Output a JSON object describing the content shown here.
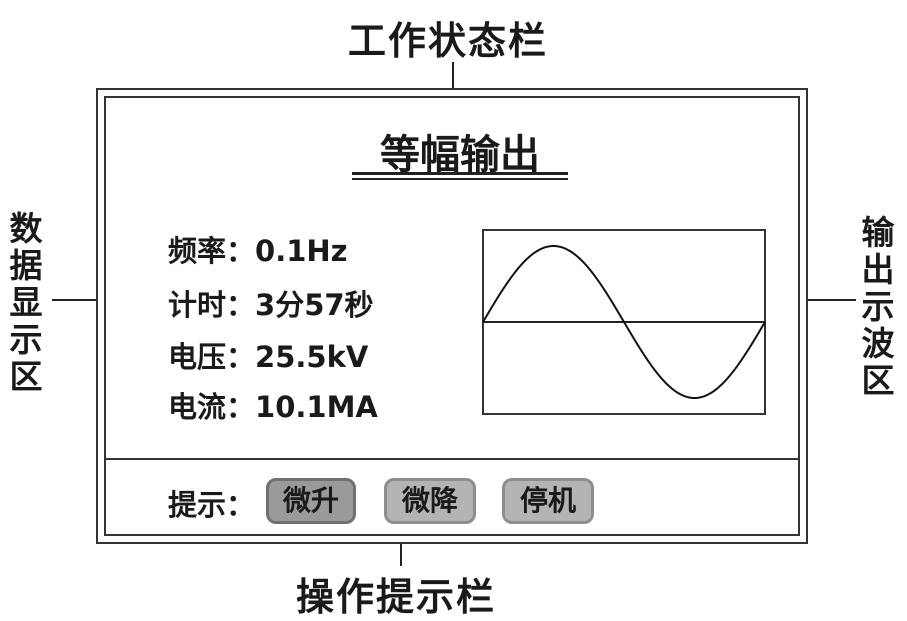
{
  "callouts": {
    "status_bar": "工作状态栏",
    "data_area": [
      "数",
      "据",
      "显",
      "示",
      "区"
    ],
    "wave_area": [
      "输",
      "出",
      "示",
      "波",
      "区"
    ],
    "hint_bar": "操作提示栏"
  },
  "screen": {
    "title": "等幅输出",
    "fields": [
      {
        "label": "频率：",
        "value": "0.1Hz"
      },
      {
        "label": "计时：",
        "value": "3分57秒"
      },
      {
        "label": "电压：",
        "value": "25.5kV"
      },
      {
        "label": "电流：",
        "value": "10.1MA"
      }
    ],
    "hint_label": "提示：",
    "buttons": [
      "微升",
      "微降",
      "停机"
    ]
  },
  "waveform": {
    "type": "sine",
    "cycles": 1
  }
}
